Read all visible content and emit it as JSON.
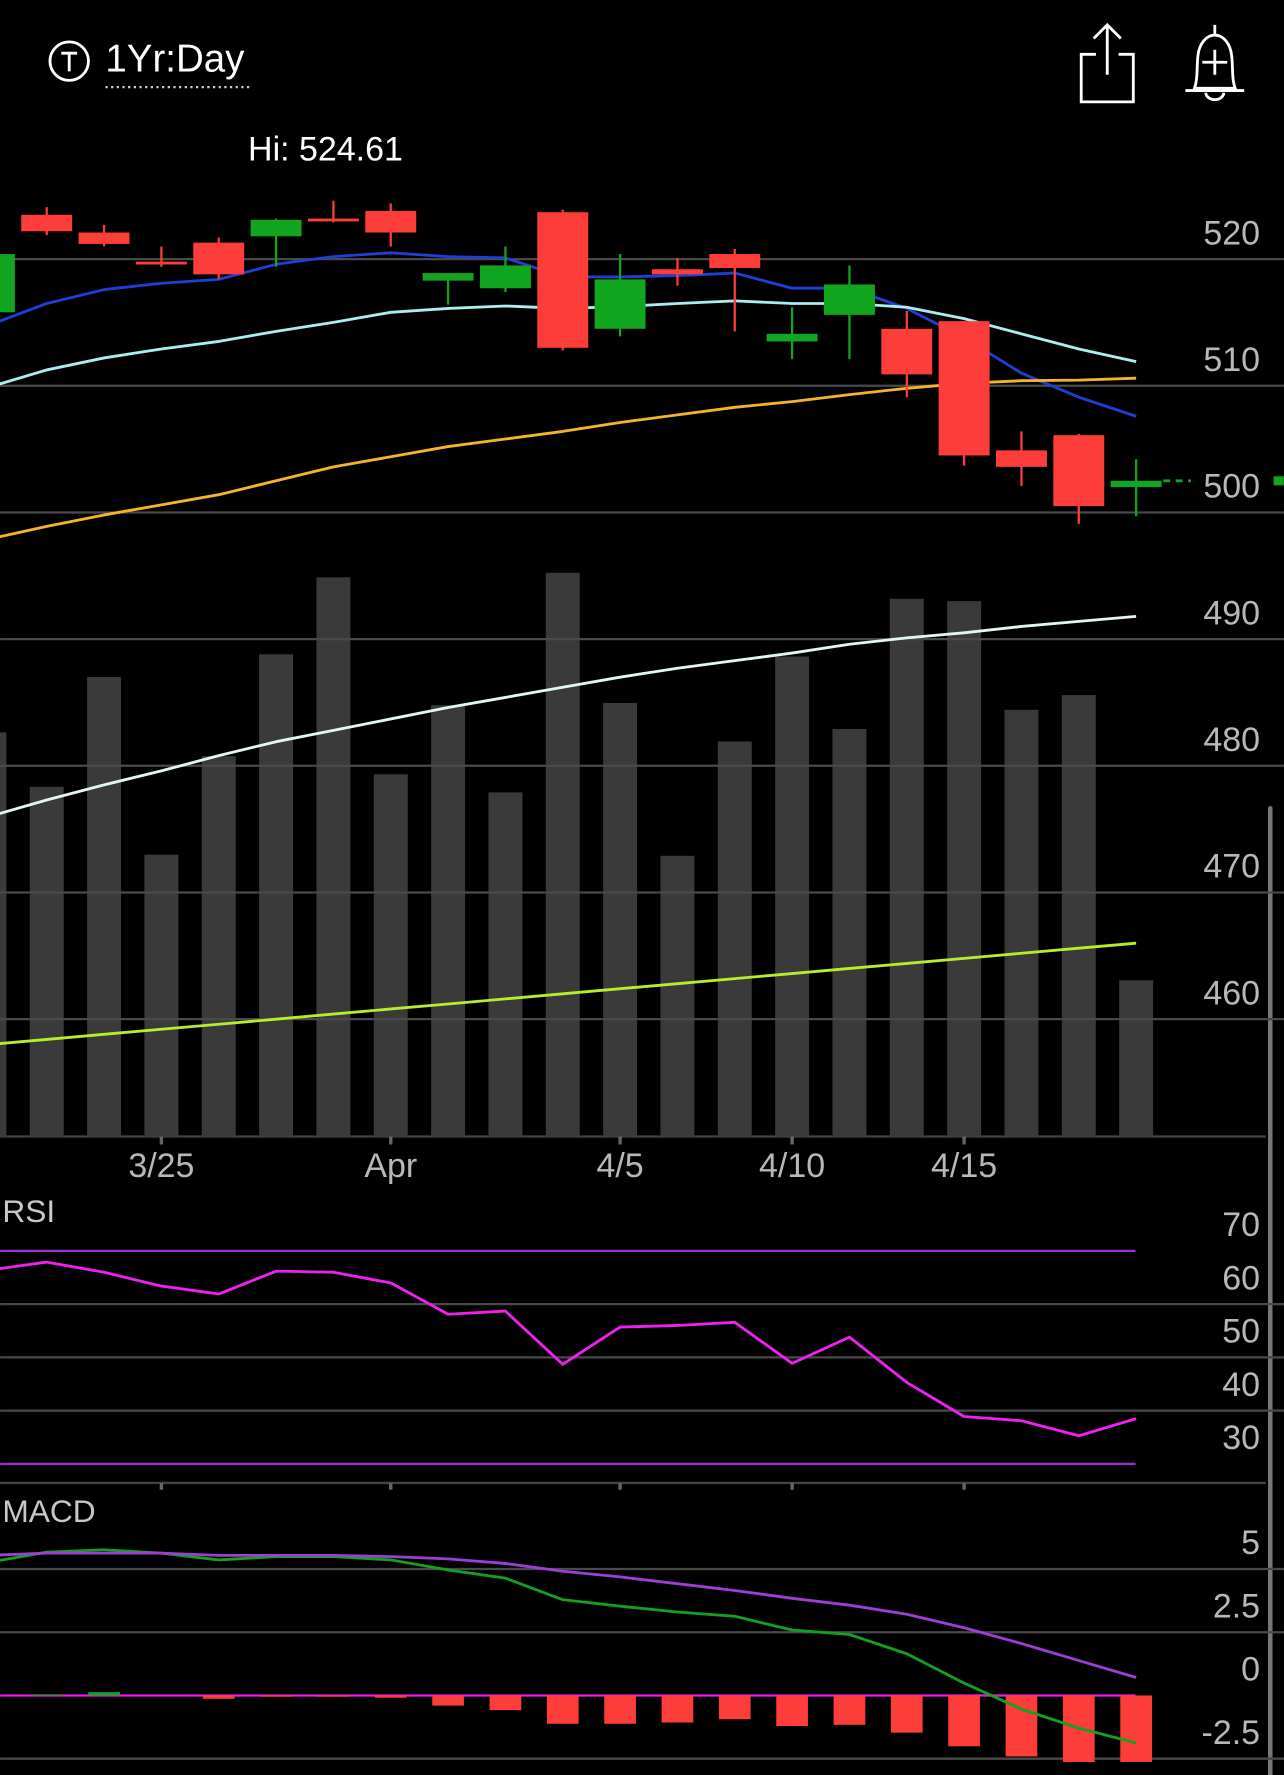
{
  "header": {
    "period": "1Yr:Day"
  },
  "chart_data": [
    {
      "type": "candlestick",
      "annotation": "Hi: 524.61",
      "categories": [
        null,
        null,
        null,
        "3/25",
        null,
        null,
        null,
        "Apr",
        null,
        null,
        null,
        "4/5",
        null,
        null,
        "4/10",
        null,
        null,
        "4/15",
        null,
        null,
        null
      ],
      "open": [
        515.8,
        523.5,
        522.1,
        519.8,
        521.3,
        521.8,
        523.2,
        523.8,
        518.3,
        517.7,
        523.7,
        514.5,
        519.2,
        520.4,
        513.5,
        515.6,
        514.5,
        515.1,
        504.9,
        506.1,
        502.0
      ],
      "high": [
        521.0,
        524.1,
        522.7,
        521.0,
        521.7,
        523.2,
        524.61,
        524.4,
        518.9,
        521.0,
        523.9,
        520.4,
        520.1,
        520.8,
        516.2,
        519.5,
        515.9,
        515.1,
        506.4,
        506.2,
        504.2
      ],
      "low": [
        515.5,
        521.9,
        521.0,
        519.4,
        518.4,
        519.4,
        522.9,
        521.0,
        516.4,
        517.4,
        512.8,
        513.9,
        517.9,
        514.3,
        512.1,
        512.1,
        509.1,
        503.7,
        502.1,
        499.1,
        499.7
      ],
      "close": [
        520.4,
        522.2,
        521.2,
        519.6,
        518.8,
        523.1,
        523.0,
        522.1,
        518.9,
        519.5,
        513.0,
        518.4,
        518.8,
        519.3,
        514.1,
        518.0,
        510.9,
        504.5,
        503.6,
        500.5,
        502.5
      ],
      "up_color": "#12a51f",
      "down_color": "#fc3d39",
      "series": [
        {
          "color": "#1f3fd6",
          "values": [
            514.8,
            516.5,
            517.6,
            518.1,
            518.4,
            519.6,
            520.2,
            520.5,
            520.2,
            520.1,
            518.6,
            518.6,
            518.7,
            518.9,
            517.7,
            517.7,
            516.1,
            513.8,
            511.0,
            509.1,
            507.6
          ]
        },
        {
          "color": "#a9eef0",
          "values": [
            509.9,
            511.25,
            512.2,
            512.9,
            513.5,
            514.3,
            515.0,
            515.8,
            516.1,
            516.3,
            516.1,
            516.25,
            516.5,
            516.7,
            516.5,
            516.5,
            516.2,
            515.3,
            514.1,
            512.9,
            511.9
          ]
        },
        {
          "color": "#f5b52a",
          "values": [
            497.9,
            498.9,
            499.8,
            500.6,
            501.4,
            502.5,
            503.6,
            504.4,
            505.2,
            505.8,
            506.4,
            507.1,
            507.7,
            508.3,
            508.75,
            509.3,
            509.8,
            510.2,
            510.4,
            510.45,
            510.6
          ]
        },
        {
          "color": "#e3f6f6",
          "values": [
            476.0,
            477.3,
            478.5,
            479.6,
            480.8,
            481.9,
            482.8,
            483.7,
            484.6,
            485.4,
            486.2,
            487.0,
            487.7,
            488.3,
            488.9,
            489.6,
            490.1,
            490.5,
            491.0,
            491.4,
            491.8
          ]
        },
        {
          "color": "#b5ee2a",
          "values": [
            458.0,
            458.4,
            458.8,
            459.2,
            459.6,
            460.0,
            460.4,
            460.8,
            461.2,
            461.6,
            462.0,
            462.4,
            462.8,
            463.2,
            463.6,
            464.0,
            464.4,
            464.8,
            465.2,
            465.6,
            466.0
          ]
        }
      ],
      "volume": [
        357,
        309,
        406,
        249,
        336,
        426,
        494,
        320,
        381,
        304,
        498,
        383,
        248,
        349,
        424,
        360,
        475,
        473,
        377,
        390,
        138
      ],
      "volume_color": "#3a3a3a",
      "volume_ylim": [
        0,
        884
      ],
      "ylim": [
        451,
        530
      ],
      "yticks": [
        460,
        470,
        480,
        490,
        500,
        510,
        520
      ],
      "grid": true
    },
    {
      "type": "line",
      "title": "RSI",
      "color": "#f020f0",
      "values": [
        66.4,
        67.9,
        66.0,
        63.4,
        61.9,
        66.2,
        66.0,
        64.0,
        58.1,
        58.7,
        48.7,
        55.7,
        56.0,
        56.6,
        48.9,
        53.8,
        45.3,
        38.9,
        38.1,
        35.3,
        38.5
      ],
      "band_color": "#9b30d9",
      "ylim": [
        26,
        80
      ],
      "yticks": [
        30,
        40,
        50,
        60,
        70
      ],
      "grid": true
    },
    {
      "type": "macd",
      "title": "MACD",
      "series": [
        {
          "color": "#14a020",
          "values": [
            5.27,
            5.67,
            5.76,
            5.63,
            5.36,
            5.49,
            5.49,
            5.36,
            4.96,
            4.64,
            3.79,
            3.53,
            3.3,
            3.13,
            2.59,
            2.41,
            1.65,
            0.49,
            -0.54,
            -1.29,
            -1.88
          ]
        },
        {
          "color": "#9b3fd6",
          "values": [
            5.54,
            5.63,
            5.63,
            5.63,
            5.54,
            5.54,
            5.54,
            5.49,
            5.4,
            5.22,
            4.91,
            4.69,
            4.42,
            4.15,
            3.84,
            3.57,
            3.21,
            2.68,
            2.05,
            1.38,
            0.71
          ]
        }
      ],
      "histogram": [
        0.0,
        0.04,
        0.13,
        0.0,
        -0.13,
        -0.05,
        -0.05,
        -0.09,
        -0.4,
        -0.58,
        -1.12,
        -1.12,
        -1.07,
        -0.94,
        -1.21,
        -1.16,
        -1.47,
        -2.01,
        -2.41,
        -2.63,
        -2.63
      ],
      "up_color": "#12a51f",
      "down_color": "#fc3d39",
      "zero_color": "#e81ee8",
      "ylim": [
        -3.1,
        8
      ],
      "yticks": [
        -2.5,
        0,
        2.5,
        5
      ],
      "grid": true
    }
  ]
}
